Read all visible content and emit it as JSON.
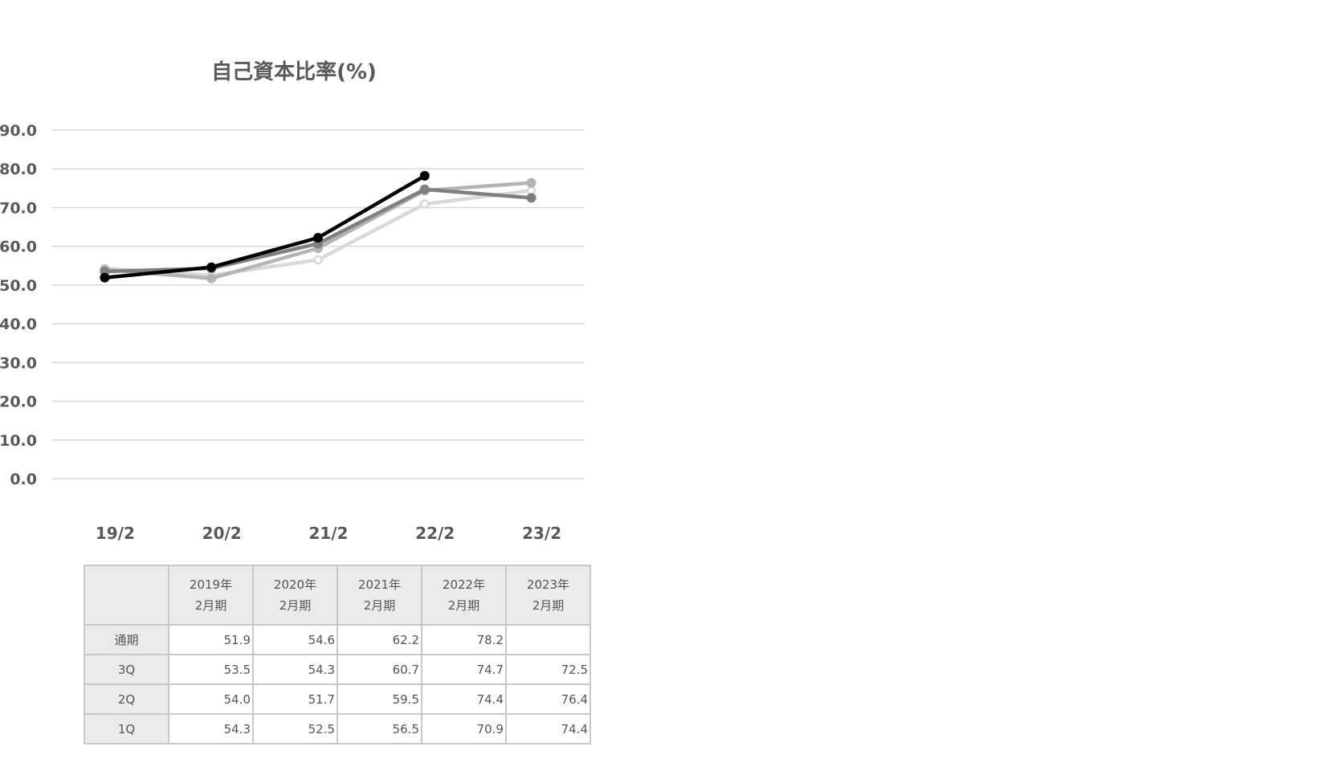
{
  "chart_data": {
    "type": "line",
    "title": "自己資本比率(%)",
    "categories": [
      "19/2",
      "20/2",
      "21/2",
      "22/2",
      "23/2"
    ],
    "ylim": [
      0,
      90
    ],
    "yticks": [
      "90.0",
      "80.0",
      "70.0",
      "60.0",
      "50.0",
      "40.0",
      "30.0",
      "20.0",
      "10.0",
      "0.0"
    ],
    "grid": true,
    "series": [
      {
        "name": "1Q",
        "values": [
          54.3,
          52.5,
          56.5,
          70.9,
          74.4
        ],
        "color": "#d9d9d9",
        "marker": "hollow"
      },
      {
        "name": "2Q",
        "values": [
          54.0,
          51.7,
          59.5,
          74.4,
          76.4
        ],
        "color": "#b4b4b4",
        "marker": "filled"
      },
      {
        "name": "3Q",
        "values": [
          53.5,
          54.3,
          60.7,
          74.7,
          72.5
        ],
        "color": "#7f7f7f",
        "marker": "filled"
      },
      {
        "name": "通期",
        "values": [
          51.9,
          54.6,
          62.2,
          78.2,
          null
        ],
        "color": "#000000",
        "marker": "filled"
      }
    ]
  },
  "table": {
    "headers": [
      {
        "year": "2019年",
        "period": "2月期"
      },
      {
        "year": "2020年",
        "period": "2月期"
      },
      {
        "year": "2021年",
        "period": "2月期"
      },
      {
        "year": "2022年",
        "period": "2月期"
      },
      {
        "year": "2023年",
        "period": "2月期"
      }
    ],
    "rows": [
      {
        "label": "通期",
        "cells": [
          "51.9",
          "54.6",
          "62.2",
          "78.2",
          ""
        ]
      },
      {
        "label": "3Q",
        "cells": [
          "53.5",
          "54.3",
          "60.7",
          "74.7",
          "72.5"
        ]
      },
      {
        "label": "2Q",
        "cells": [
          "54.0",
          "51.7",
          "59.5",
          "74.4",
          "76.4"
        ]
      },
      {
        "label": "1Q",
        "cells": [
          "54.3",
          "52.5",
          "56.5",
          "70.9",
          "74.4"
        ]
      }
    ]
  }
}
